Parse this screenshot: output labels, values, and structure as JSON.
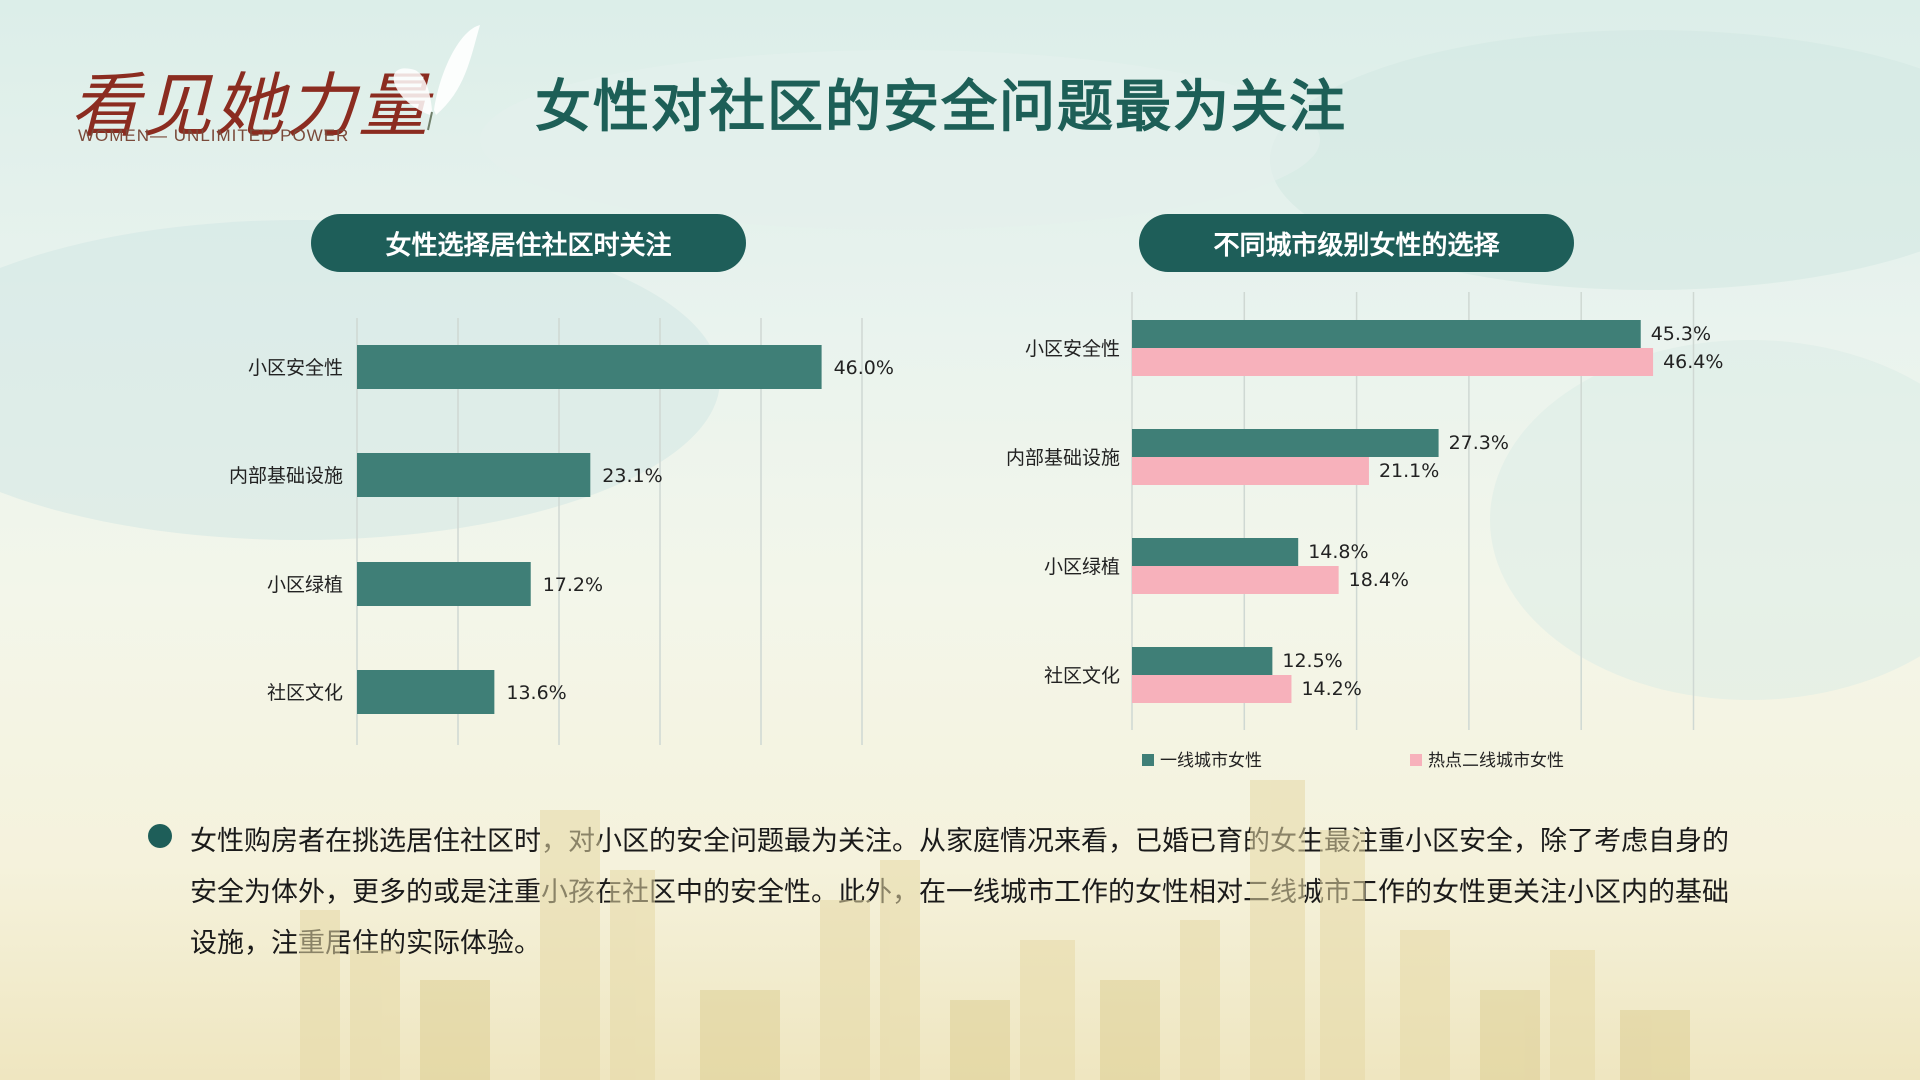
{
  "logo": {
    "main": "看见她力量",
    "sub": "WOMEN— UNLIMITED POWER"
  },
  "title": "女性对社区的安全问题最为关注",
  "colors": {
    "teal": "#3f7f77",
    "pink": "#f7b1bb",
    "accent": "#1e5e59"
  },
  "chart_data": [
    {
      "type": "bar",
      "orientation": "horizontal",
      "title": "女性选择居住社区时关注",
      "categories": [
        "小区安全性",
        "内部基础设施",
        "小区绿植",
        "社区文化"
      ],
      "values": [
        46.0,
        23.1,
        17.2,
        13.6
      ],
      "value_labels": [
        "46.0%",
        "23.1%",
        "17.2%",
        "13.6%"
      ],
      "xlim": [
        0,
        50
      ],
      "grid": true
    },
    {
      "type": "bar",
      "orientation": "horizontal",
      "title": "不同城市级别女性的选择",
      "categories": [
        "小区安全性",
        "内部基础设施",
        "小区绿植",
        "社区文化"
      ],
      "series": [
        {
          "name": "一线城市女性",
          "values": [
            45.3,
            27.3,
            14.8,
            12.5
          ],
          "labels": [
            "45.3%",
            "27.3%",
            "14.8%",
            "12.5%"
          ],
          "color": "#3f7f77"
        },
        {
          "name": "热点二线城市女性",
          "values": [
            46.4,
            21.1,
            18.4,
            14.2
          ],
          "labels": [
            "46.4%",
            "21.1%",
            "18.4%",
            "14.2%"
          ],
          "color": "#f7b1bb"
        }
      ],
      "xlim": [
        0,
        50
      ],
      "grid": true,
      "legend": "bottom"
    }
  ],
  "summary": "女性购房者在挑选居住社区时，对小区的安全问题最为关注。从家庭情况来看，已婚已育的女生最注重小区安全，除了考虑自身的安全为体外，更多的或是注重小孩在社区中的安全性。此外，在一线城市工作的女性相对二线城市工作的女性更关注小区内的基础设施，注重居住的实际体验。"
}
